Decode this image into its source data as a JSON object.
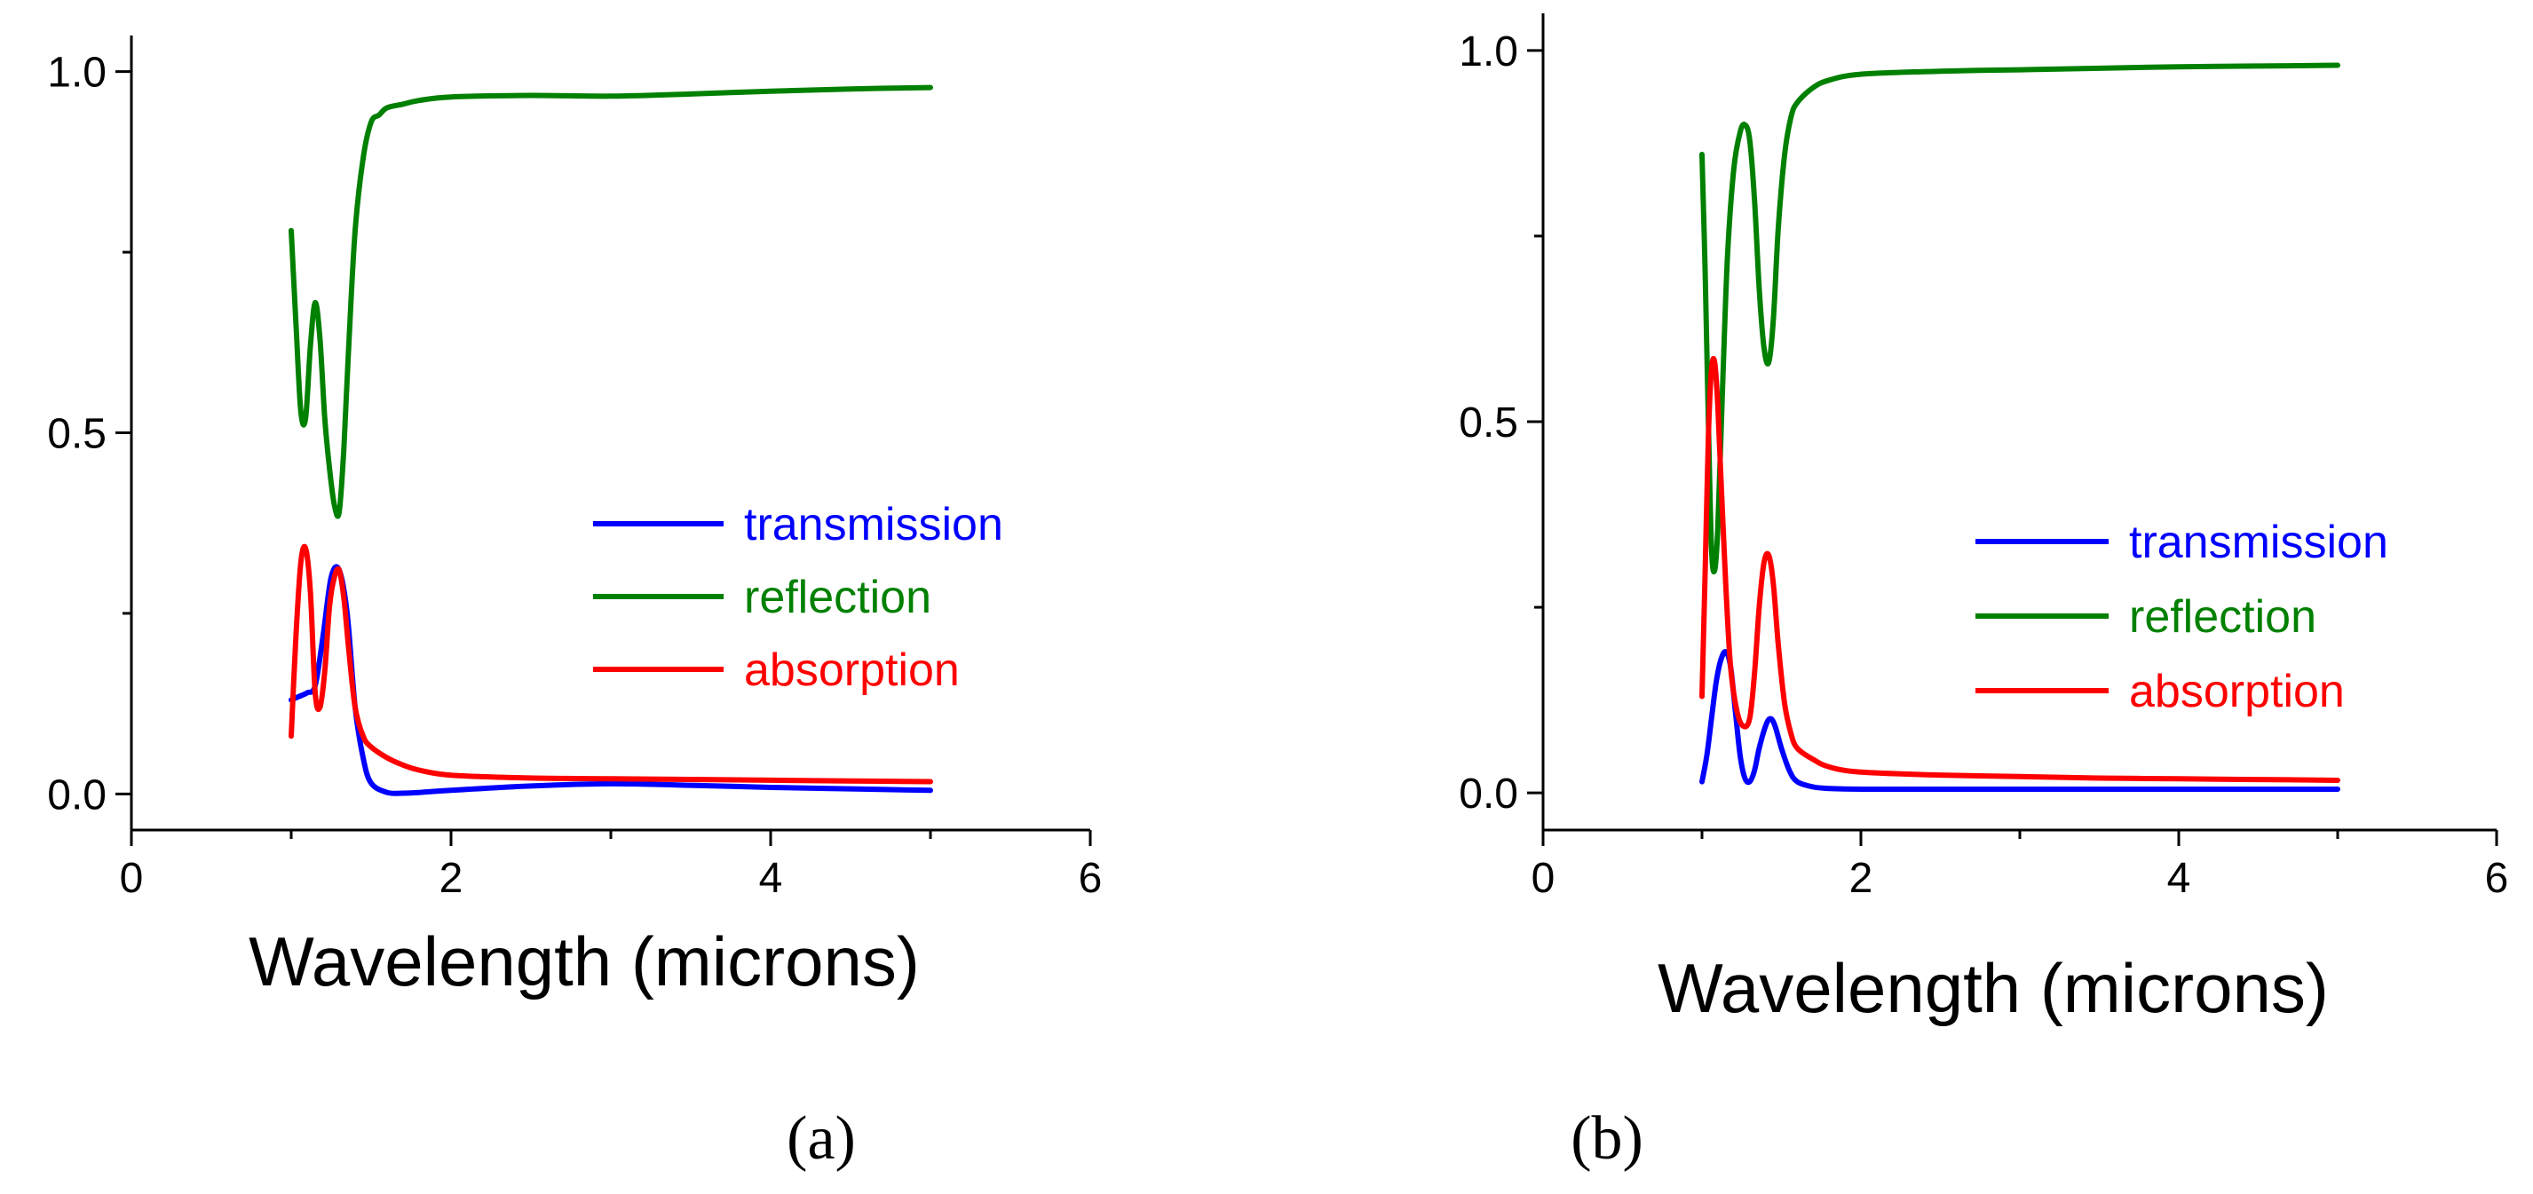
{
  "chart_data": [
    {
      "type": "line",
      "panel_label": "(a)",
      "xlabel": "Wavelength (microns)",
      "ylabel": "",
      "xlim": [
        0,
        6
      ],
      "ylim": [
        -0.05,
        1.05
      ],
      "xticks": [
        0,
        2,
        4,
        6
      ],
      "xtick_labels": [
        "0",
        "2",
        "4",
        "6"
      ],
      "yticks": [
        0.0,
        0.5,
        1.0
      ],
      "ytick_labels": [
        "0.0",
        "0.5",
        "1.0"
      ],
      "legend_position": "center-right",
      "series": [
        {
          "name": "transmission",
          "color": "#0000ff",
          "x": [
            1.0,
            1.05,
            1.1,
            1.15,
            1.2,
            1.25,
            1.3,
            1.35,
            1.4,
            1.45,
            1.5,
            1.6,
            1.7,
            1.8,
            2.0,
            2.5,
            3.0,
            3.5,
            4.0,
            4.5,
            5.0
          ],
          "y": [
            0.13,
            0.135,
            0.14,
            0.15,
            0.22,
            0.3,
            0.31,
            0.25,
            0.12,
            0.05,
            0.015,
            0.002,
            0.001,
            0.002,
            0.005,
            0.011,
            0.014,
            0.012,
            0.009,
            0.007,
            0.005
          ]
        },
        {
          "name": "reflection",
          "color": "#008000",
          "x": [
            1.0,
            1.03,
            1.06,
            1.09,
            1.12,
            1.15,
            1.18,
            1.21,
            1.24,
            1.27,
            1.3,
            1.33,
            1.36,
            1.4,
            1.45,
            1.5,
            1.55,
            1.6,
            1.7,
            1.8,
            2.0,
            2.5,
            3.0,
            3.5,
            4.0,
            4.5,
            5.0
          ],
          "y": [
            0.78,
            0.65,
            0.53,
            0.52,
            0.62,
            0.68,
            0.63,
            0.52,
            0.45,
            0.4,
            0.39,
            0.48,
            0.62,
            0.78,
            0.88,
            0.93,
            0.94,
            0.95,
            0.955,
            0.96,
            0.965,
            0.967,
            0.966,
            0.969,
            0.973,
            0.976,
            0.978
          ]
        },
        {
          "name": "absorption",
          "color": "#ff0000",
          "x": [
            1.0,
            1.03,
            1.06,
            1.09,
            1.12,
            1.15,
            1.18,
            1.21,
            1.24,
            1.27,
            1.3,
            1.33,
            1.36,
            1.4,
            1.45,
            1.5,
            1.6,
            1.7,
            1.8,
            2.0,
            2.5,
            3.0,
            3.5,
            4.0,
            4.5,
            5.0
          ],
          "y": [
            0.08,
            0.22,
            0.32,
            0.34,
            0.28,
            0.14,
            0.12,
            0.17,
            0.26,
            0.3,
            0.31,
            0.27,
            0.2,
            0.12,
            0.08,
            0.065,
            0.05,
            0.04,
            0.033,
            0.026,
            0.022,
            0.021,
            0.02,
            0.019,
            0.018,
            0.017
          ]
        }
      ]
    },
    {
      "type": "line",
      "panel_label": "(b)",
      "xlabel": "Wavelength (microns)",
      "ylabel": "",
      "xlim": [
        0,
        6
      ],
      "ylim": [
        -0.05,
        1.05
      ],
      "xticks": [
        0,
        2,
        4,
        6
      ],
      "xtick_labels": [
        "0",
        "2",
        "4",
        "6"
      ],
      "yticks": [
        0.0,
        0.5,
        1.0
      ],
      "ytick_labels": [
        "0.0",
        "0.5",
        "1.0"
      ],
      "legend_position": "center-right",
      "series": [
        {
          "name": "transmission",
          "color": "#0000ff",
          "x": [
            1.0,
            1.03,
            1.06,
            1.09,
            1.12,
            1.15,
            1.18,
            1.21,
            1.24,
            1.27,
            1.3,
            1.33,
            1.36,
            1.4,
            1.43,
            1.46,
            1.5,
            1.55,
            1.6,
            1.7,
            1.8,
            2.0,
            2.5,
            3.0,
            3.5,
            4.0,
            4.5,
            5.0
          ],
          "y": [
            0.015,
            0.05,
            0.1,
            0.15,
            0.18,
            0.19,
            0.17,
            0.11,
            0.05,
            0.02,
            0.015,
            0.03,
            0.06,
            0.09,
            0.1,
            0.09,
            0.06,
            0.03,
            0.015,
            0.008,
            0.006,
            0.005,
            0.005,
            0.005,
            0.005,
            0.005,
            0.005,
            0.005
          ]
        },
        {
          "name": "reflection",
          "color": "#008000",
          "x": [
            1.0,
            1.02,
            1.04,
            1.06,
            1.08,
            1.1,
            1.13,
            1.16,
            1.2,
            1.24,
            1.27,
            1.3,
            1.33,
            1.36,
            1.39,
            1.42,
            1.45,
            1.48,
            1.52,
            1.56,
            1.6,
            1.7,
            1.8,
            2.0,
            2.5,
            3.0,
            3.5,
            4.0,
            4.5,
            5.0
          ],
          "y": [
            0.86,
            0.7,
            0.5,
            0.33,
            0.3,
            0.36,
            0.55,
            0.72,
            0.84,
            0.89,
            0.9,
            0.88,
            0.8,
            0.68,
            0.6,
            0.58,
            0.64,
            0.76,
            0.86,
            0.91,
            0.93,
            0.95,
            0.96,
            0.968,
            0.972,
            0.974,
            0.976,
            0.978,
            0.979,
            0.98
          ]
        },
        {
          "name": "absorption",
          "color": "#ff0000",
          "x": [
            1.0,
            1.02,
            1.04,
            1.06,
            1.08,
            1.1,
            1.12,
            1.15,
            1.18,
            1.22,
            1.26,
            1.3,
            1.33,
            1.36,
            1.39,
            1.42,
            1.45,
            1.48,
            1.52,
            1.56,
            1.6,
            1.7,
            1.8,
            2.0,
            2.5,
            3.0,
            3.5,
            4.0,
            4.5,
            5.0
          ],
          "y": [
            0.13,
            0.3,
            0.48,
            0.57,
            0.58,
            0.52,
            0.42,
            0.28,
            0.17,
            0.11,
            0.09,
            0.1,
            0.16,
            0.25,
            0.31,
            0.32,
            0.28,
            0.2,
            0.12,
            0.08,
            0.06,
            0.045,
            0.035,
            0.028,
            0.024,
            0.022,
            0.02,
            0.019,
            0.018,
            0.017
          ]
        }
      ]
    }
  ]
}
